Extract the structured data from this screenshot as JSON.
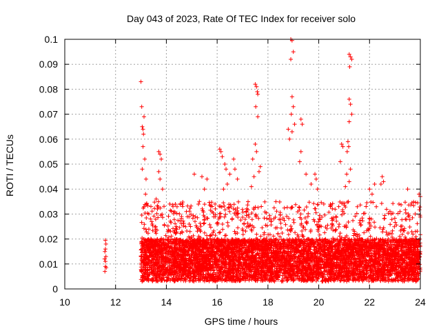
{
  "chart_data": {
    "type": "scatter",
    "title": "Day 043 of 2023, Rate Of TEC Index for receiver solo",
    "xlabel": "GPS time / hours",
    "ylabel": "ROTI / TECUs",
    "xlim": [
      10,
      24
    ],
    "ylim": [
      0,
      0.1
    ],
    "xticks": [
      "10",
      "12",
      "14",
      "16",
      "18",
      "20",
      "22",
      "24"
    ],
    "yticks": [
      "0",
      "0.01",
      "0.02",
      "0.03",
      "0.04",
      "0.05",
      "0.06",
      "0.07",
      "0.08",
      "0.09",
      "0.1"
    ],
    "grid": true,
    "marker": "plus",
    "color": "#ff0000",
    "series": [
      {
        "points": [
          [
            11.58,
            0.007
          ],
          [
            11.6,
            0.009
          ],
          [
            11.6,
            0.011
          ],
          [
            11.62,
            0.013
          ],
          [
            11.58,
            0.015
          ],
          [
            11.6,
            0.016
          ],
          [
            11.62,
            0.018
          ],
          [
            11.6,
            0.0195
          ],
          [
            11.63,
            0.0085
          ],
          [
            11.57,
            0.012
          ],
          [
            13.0,
            0.083
          ],
          [
            13.03,
            0.073
          ],
          [
            13.05,
            0.065
          ],
          [
            13.08,
            0.064
          ],
          [
            13.1,
            0.062
          ],
          [
            13.12,
            0.069
          ],
          [
            13.08,
            0.057
          ],
          [
            13.15,
            0.052
          ],
          [
            13.05,
            0.048
          ],
          [
            13.2,
            0.044
          ],
          [
            13.18,
            0.038
          ],
          [
            13.22,
            0.034
          ],
          [
            13.7,
            0.055
          ],
          [
            13.75,
            0.054
          ],
          [
            13.8,
            0.052
          ],
          [
            13.7,
            0.047
          ],
          [
            13.75,
            0.044
          ],
          [
            13.85,
            0.04
          ],
          [
            13.6,
            0.036
          ],
          [
            13.65,
            0.032
          ],
          [
            15.1,
            0.046
          ],
          [
            15.4,
            0.045
          ],
          [
            15.6,
            0.044
          ],
          [
            15.5,
            0.04
          ],
          [
            15.3,
            0.035
          ],
          [
            15.8,
            0.033
          ],
          [
            16.1,
            0.056
          ],
          [
            16.15,
            0.055
          ],
          [
            16.2,
            0.053
          ],
          [
            16.3,
            0.05
          ],
          [
            16.35,
            0.048
          ],
          [
            16.5,
            0.046
          ],
          [
            16.65,
            0.052
          ],
          [
            16.7,
            0.048
          ],
          [
            16.4,
            0.042
          ],
          [
            16.25,
            0.04
          ],
          [
            16.8,
            0.044
          ],
          [
            17.5,
            0.082
          ],
          [
            17.55,
            0.081
          ],
          [
            17.58,
            0.079
          ],
          [
            17.6,
            0.078
          ],
          [
            17.52,
            0.073
          ],
          [
            17.6,
            0.069
          ],
          [
            17.5,
            0.058
          ],
          [
            17.55,
            0.055
          ],
          [
            17.4,
            0.052
          ],
          [
            17.7,
            0.049
          ],
          [
            17.45,
            0.045
          ],
          [
            17.65,
            0.047
          ],
          [
            17.35,
            0.041
          ],
          [
            18.9,
            0.1
          ],
          [
            18.95,
            0.0995
          ],
          [
            19.0,
            0.095
          ],
          [
            18.9,
            0.092
          ],
          [
            18.95,
            0.077
          ],
          [
            19.0,
            0.073
          ],
          [
            18.92,
            0.07
          ],
          [
            18.95,
            0.063
          ],
          [
            19.05,
            0.066
          ],
          [
            18.8,
            0.064
          ],
          [
            18.85,
            0.06
          ],
          [
            19.3,
            0.068
          ],
          [
            19.35,
            0.066
          ],
          [
            19.3,
            0.055
          ],
          [
            19.25,
            0.051
          ],
          [
            19.5,
            0.046
          ],
          [
            19.85,
            0.046
          ],
          [
            19.9,
            0.044
          ],
          [
            19.95,
            0.04
          ],
          [
            19.7,
            0.042
          ],
          [
            20.9,
            0.058
          ],
          [
            20.95,
            0.057
          ],
          [
            20.85,
            0.051
          ],
          [
            21.2,
            0.094
          ],
          [
            21.25,
            0.093
          ],
          [
            21.3,
            0.092
          ],
          [
            21.22,
            0.089
          ],
          [
            21.2,
            0.076
          ],
          [
            21.25,
            0.074
          ],
          [
            21.3,
            0.07
          ],
          [
            21.2,
            0.067
          ],
          [
            21.15,
            0.059
          ],
          [
            21.18,
            0.057
          ],
          [
            21.12,
            0.055
          ],
          [
            21.25,
            0.048
          ],
          [
            21.1,
            0.046
          ],
          [
            21.2,
            0.043
          ],
          [
            21.05,
            0.041
          ],
          [
            22.0,
            0.04
          ],
          [
            22.1,
            0.038
          ],
          [
            22.2,
            0.042
          ],
          [
            22.5,
            0.045
          ],
          [
            22.55,
            0.043
          ],
          [
            22.45,
            0.042
          ],
          [
            23.5,
            0.04
          ],
          [
            23.95,
            0.038
          ],
          [
            24.0,
            0.037
          ],
          [
            23.2,
            0.031
          ]
        ]
      }
    ],
    "dense_band": {
      "x_start": 13.0,
      "x_end": 24.0,
      "y_floor": 0.003,
      "y_typical_max": 0.02,
      "y_burst_max": 0.035
    }
  }
}
